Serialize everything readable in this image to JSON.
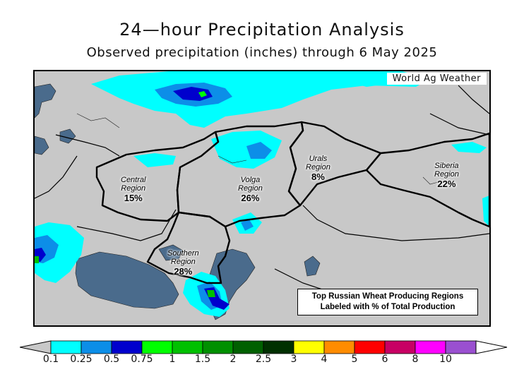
{
  "title": "24—hour Precipitation Analysis",
  "subtitle": "Observed precipitation (inches) through 6 May 2025",
  "credit": "World Ag Weather",
  "regions": [
    {
      "name": "Central\nRegion",
      "line1": "Central",
      "line2": "Region",
      "pct": "15%"
    },
    {
      "name": "Volga Region",
      "line1": "Volga",
      "line2": "Region",
      "pct": "26%"
    },
    {
      "name": "Urals Region",
      "line1": "Urals",
      "line2": "Region",
      "pct": "8%"
    },
    {
      "name": "Siberia Region",
      "line1": "Siberia",
      "line2": "Region",
      "pct": "22%"
    },
    {
      "name": "Southern Region",
      "line1": "Southern",
      "line2": "Region",
      "pct": "28%"
    }
  ],
  "note": {
    "line1": "Top Russian Wheat Producing Regions",
    "line2": "Labeled with % of Total Production"
  },
  "legend": {
    "ticks": [
      "0.1",
      "0.25",
      "0.5",
      "0.75",
      "1",
      "1.5",
      "2",
      "2.5",
      "3",
      "4",
      "5",
      "6",
      "8",
      "10"
    ],
    "colors": [
      "#00ffff",
      "#0c8ee8",
      "#0000cd",
      "#00ff00",
      "#00c000",
      "#009000",
      "#006000",
      "#003000",
      "#ffff00",
      "#ff8c00",
      "#ff0000",
      "#c80064",
      "#ff00ff",
      "#9a50d0"
    ],
    "low_color": "#c8c8c8",
    "high_color": "#ffffff"
  },
  "colors": {
    "land": "#c8c8c8",
    "water": "#4a6b8c",
    "border": "#000000"
  }
}
